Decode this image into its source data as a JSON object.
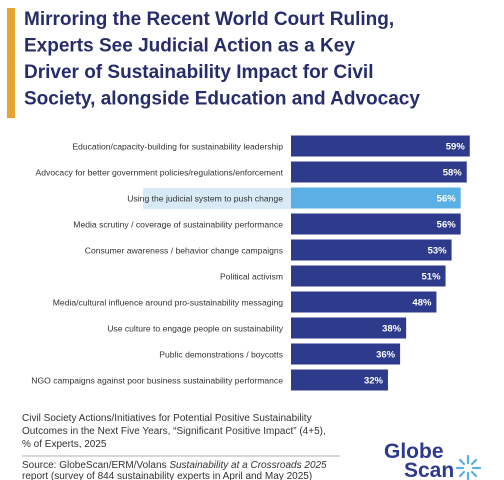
{
  "chart_data": {
    "type": "bar",
    "orientation": "horizontal",
    "title": [
      "Mirroring the Recent World Court Ruling,",
      "Experts See Judicial Action as a Key",
      "Driver of Sustainability Impact for Civil",
      "Society, alongside Education and Advocacy"
    ],
    "categories": [
      "Education/capacity-building for sustainability leadership",
      "Advocacy for better government policies/regulations/enforcement",
      "Using the judicial system to push change",
      "Media scrutiny / coverage of sustainability performance",
      "Consumer awareness / behavior change campaigns",
      "Political activism",
      "Media/cultural influence around pro-sustainability messaging",
      "Use culture to engage people on sustainability",
      "Public demonstrations / boycotts",
      "NGO campaigns against poor business sustainability performance"
    ],
    "values": [
      59,
      58,
      56,
      56,
      53,
      51,
      48,
      38,
      36,
      32
    ],
    "value_labels": [
      "59%",
      "58%",
      "56%",
      "56%",
      "53%",
      "51%",
      "48%",
      "38%",
      "36%",
      "32%"
    ],
    "colors": [
      "#2e3a8c",
      "#2e3a8c",
      "#5ab0e4",
      "#2e3a8c",
      "#2e3a8c",
      "#2e3a8c",
      "#2e3a8c",
      "#2e3a8c",
      "#2e3a8c",
      "#2e3a8c"
    ],
    "note": [
      "Civil Society Actions/Initiatives for Potential Positive Sustainability",
      "Outcomes in the Next Five Years, “Significant Positive Impact” (4+5),",
      "% of Experts, 2025"
    ],
    "source": {
      "prefix": "Source: GlobeScan/ERM/Volans ",
      "title": "Sustainability at a Crossroads 2025",
      "suffix": "report (survey of 844 sustainability experts in April and May 2025)"
    },
    "logo": [
      "Globe",
      "Scan"
    ]
  }
}
